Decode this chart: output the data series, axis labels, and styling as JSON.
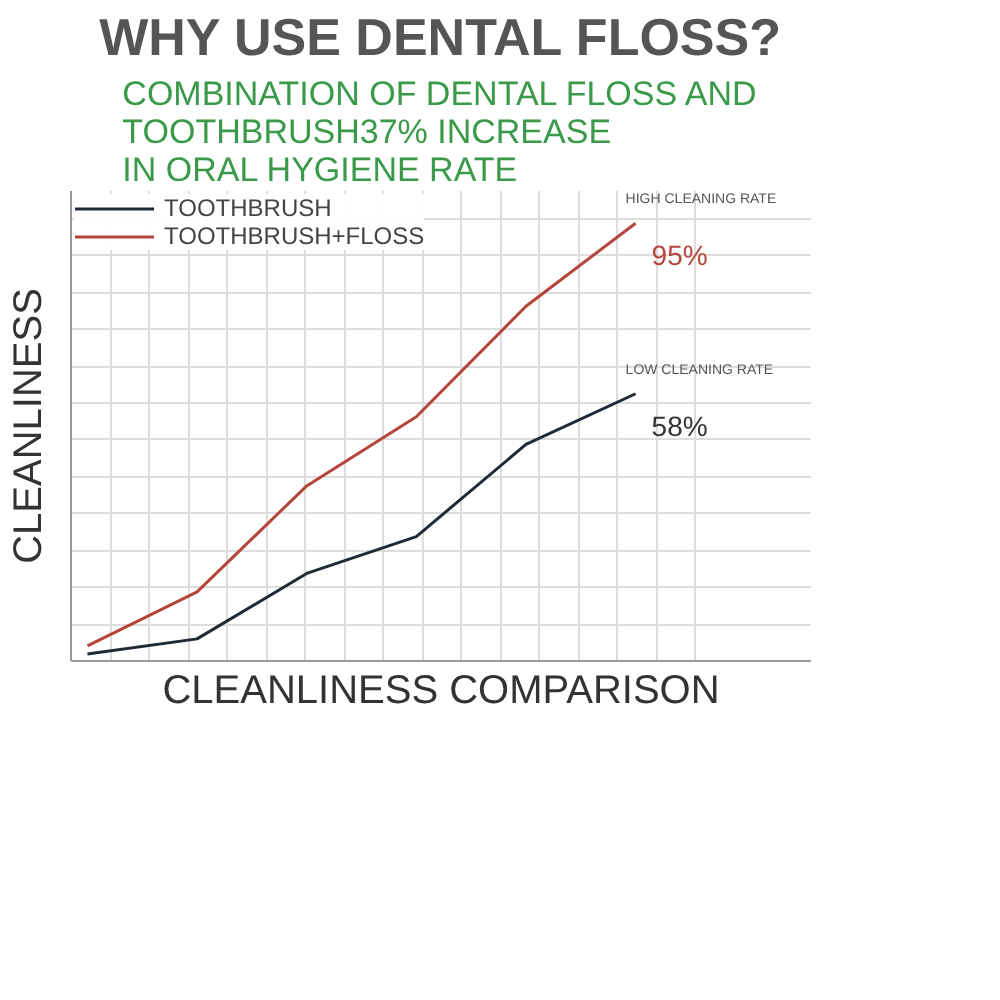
{
  "chart_data": {
    "type": "line",
    "title": "WHY USE DENTAL FLOSS?",
    "subtitle": "COMBINATION OF DENTAL FLOSS AND\nTOOTHBRUSH37% INCREASE\nIN ORAL HYGIENE RATE",
    "xlabel": "CLEANLINESS COMPARISON",
    "ylabel": "CLEANLINESS",
    "categories": [
      null,
      null,
      null,
      null,
      null,
      null
    ],
    "ylim": [
      0,
      102
    ],
    "yticks": [
      {
        "value": 8,
        "label": null
      },
      {
        "value": 16,
        "label": null
      },
      {
        "value": 24,
        "label": null
      },
      {
        "value": 32,
        "label": null
      },
      {
        "value": 40,
        "label": null
      },
      {
        "value": 48,
        "label": null
      },
      {
        "value": 56,
        "label": null
      },
      {
        "value": 64,
        "label": null
      },
      {
        "value": 72,
        "label": null
      },
      {
        "value": 80,
        "label": null
      },
      {
        "value": 88,
        "label": null
      },
      {
        "value": 96,
        "label": null
      }
    ],
    "series": [
      {
        "name": "TOOTHBRUSH",
        "color": "#1f2a36",
        "values": [
          1.5,
          4.8,
          19,
          27,
          47,
          58
        ],
        "value_labels": [
          null,
          null,
          null,
          null,
          null,
          "58%"
        ]
      },
      {
        "name": "TOOTHBRUSH+FLOSS",
        "color": "#b5443a",
        "values": [
          3.3,
          15,
          38,
          53,
          77,
          95
        ],
        "value_labels": [
          null,
          null,
          null,
          null,
          null,
          "95%"
        ]
      }
    ],
    "annotations": [
      "HIGH CLEANING RATE",
      "LOW CLEANING RATE"
    ],
    "grid": true,
    "legend": "top left",
    "line_style": "solid"
  }
}
